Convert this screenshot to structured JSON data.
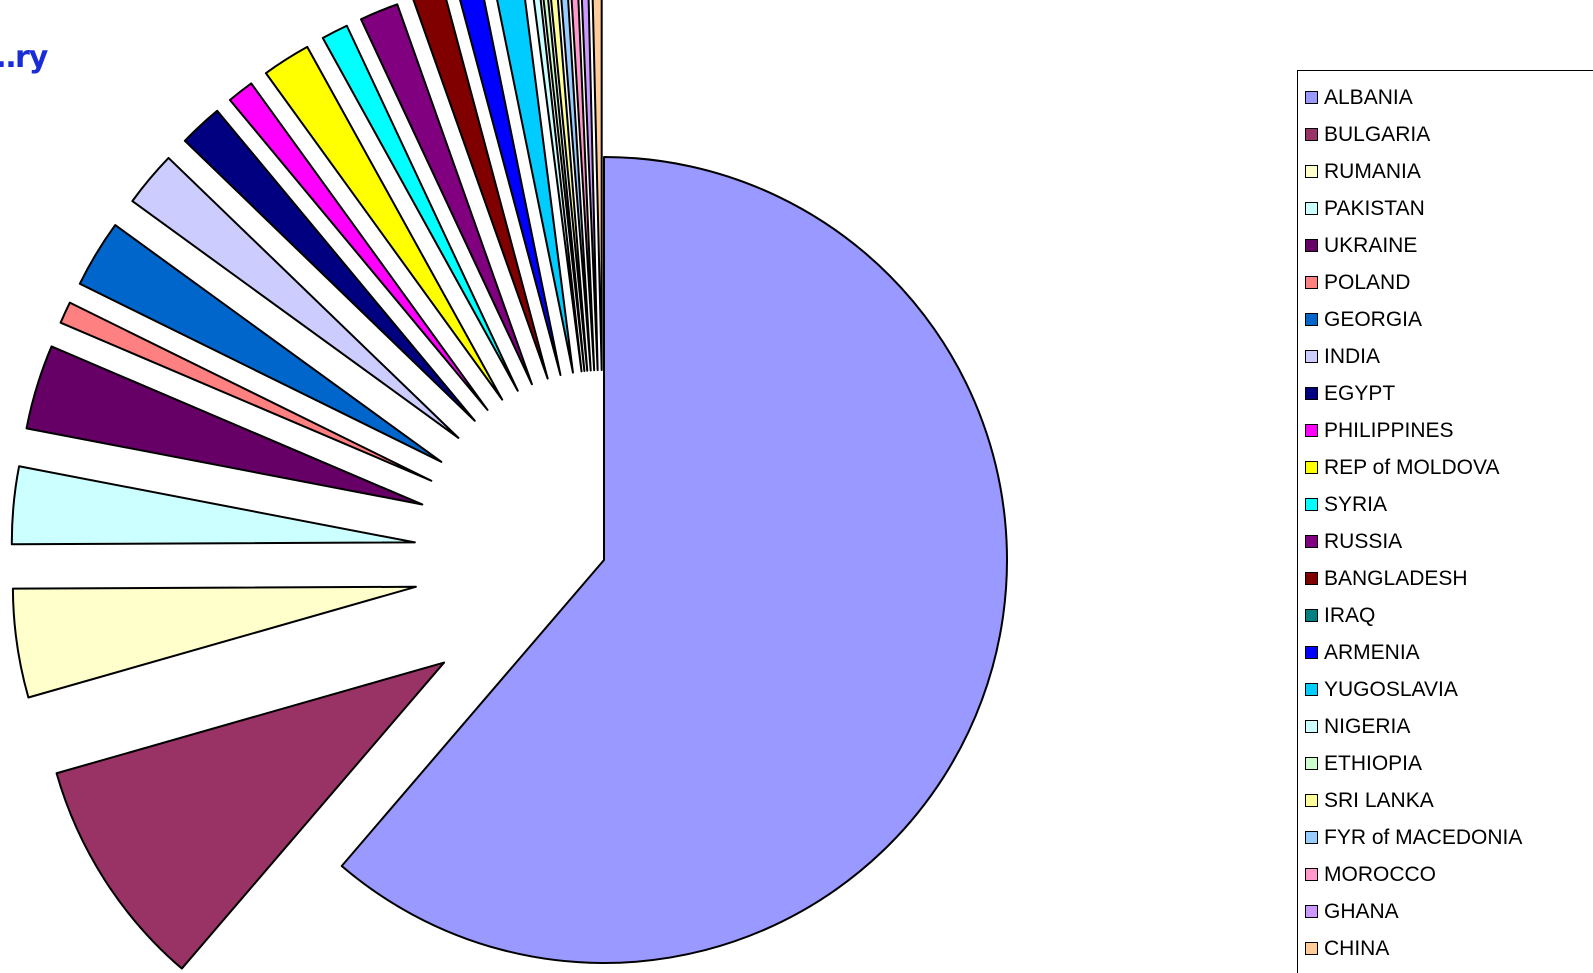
{
  "chart_data": {
    "type": "pie",
    "title": "…ry",
    "legend_position": "right",
    "categories": [
      "ALBANIA",
      "BULGARIA",
      "RUMANIA",
      "PAKISTAN",
      "UKRAINE",
      "POLAND",
      "GEORGIA",
      "INDIA",
      "EGYPT",
      "PHILIPPINES",
      "REP of MOLDOVA",
      "SYRIA",
      "RUSSIA",
      "BANGLADESH",
      "IRAQ",
      "ARMENIA",
      "YUGOSLAVIA",
      "NIGERIA",
      "ETHIOPIA",
      "SRI LANKA",
      "FYR of MACEDONIA",
      "MOROCCO",
      "GHANA",
      "CHINA"
    ],
    "values": [
      63.3,
      9.6,
      4.5,
      3.2,
      3.5,
      0.9,
      2.8,
      2.3,
      1.8,
      1.1,
      2.0,
      1.1,
      1.6,
      1.3,
      0.0,
      1.0,
      1.2,
      0.3,
      0.2,
      0.3,
      0.3,
      0.3,
      0.3,
      0.4
    ],
    "colors": [
      "#9999ff",
      "#993366",
      "#ffffcc",
      "#ccffff",
      "#660066",
      "#ff8080",
      "#0066cc",
      "#ccccff",
      "#000080",
      "#ff00ff",
      "#ffff00",
      "#00ffff",
      "#800080",
      "#800000",
      "#008080",
      "#0000ff",
      "#00ccff",
      "#ccffff",
      "#ccffcc",
      "#ffff99",
      "#99ccff",
      "#ff99cc",
      "#cc99ff",
      "#ffcc99"
    ],
    "unit": "percent (estimated)"
  }
}
